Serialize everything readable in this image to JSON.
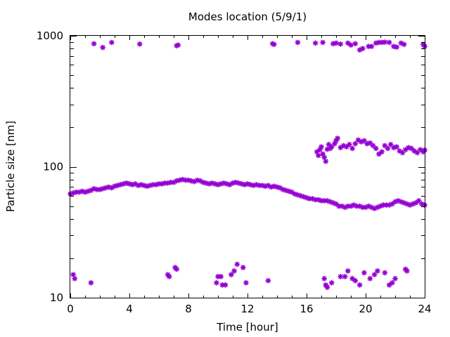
{
  "chart_data": {
    "type": "scatter",
    "title": "Modes location (5/9/1)",
    "xlabel": "Time [hour]",
    "ylabel": "Particle size [nm]",
    "xlim": [
      0,
      24
    ],
    "ylim": [
      10,
      1000
    ],
    "yscale": "log",
    "grid": false,
    "legend": "none",
    "marker_color": "#9400d3",
    "marker": "star",
    "x_ticks": [
      "0",
      "4",
      "8",
      "12",
      "16",
      "20",
      "24"
    ],
    "y_ticks": [
      "10",
      "100",
      "1000"
    ],
    "series": [
      {
        "values": [
          [
            1.6,
            870
          ],
          [
            2.2,
            815
          ],
          [
            2.8,
            890
          ],
          [
            4.7,
            865
          ],
          [
            7.2,
            840
          ],
          [
            7.3,
            850
          ],
          [
            13.7,
            870
          ],
          [
            13.8,
            860
          ],
          [
            15.4,
            890
          ],
          [
            16.6,
            880
          ],
          [
            17.1,
            890
          ],
          [
            17.8,
            870
          ],
          [
            18.0,
            880
          ],
          [
            18.3,
            865
          ],
          [
            18.8,
            880
          ],
          [
            19.0,
            850
          ],
          [
            19.3,
            870
          ],
          [
            19.6,
            780
          ],
          [
            19.8,
            800
          ],
          [
            20.2,
            830
          ],
          [
            20.4,
            830
          ],
          [
            20.7,
            880
          ],
          [
            20.9,
            890
          ],
          [
            21.1,
            890
          ],
          [
            21.3,
            895
          ],
          [
            21.6,
            890
          ],
          [
            21.9,
            830
          ],
          [
            22.1,
            820
          ],
          [
            22.4,
            880
          ],
          [
            22.6,
            860
          ],
          [
            23.9,
            860
          ],
          [
            24.0,
            830
          ]
        ]
      },
      {
        "values": [
          [
            16.7,
            130
          ],
          [
            16.8,
            122
          ],
          [
            16.9,
            135
          ],
          [
            17.0,
            142
          ],
          [
            17.1,
            125
          ],
          [
            17.2,
            118
          ],
          [
            17.3,
            110
          ],
          [
            17.4,
            136
          ],
          [
            17.5,
            148
          ],
          [
            17.6,
            138
          ],
          [
            17.7,
            142
          ],
          [
            17.9,
            150
          ],
          [
            18.0,
            158
          ],
          [
            18.1,
            165
          ],
          [
            18.3,
            140
          ],
          [
            18.5,
            145
          ],
          [
            18.7,
            142
          ],
          [
            18.9,
            148
          ],
          [
            19.1,
            138
          ],
          [
            19.3,
            150
          ],
          [
            19.5,
            160
          ],
          [
            19.7,
            155
          ],
          [
            19.9,
            158
          ],
          [
            20.1,
            150
          ],
          [
            20.3,
            152
          ],
          [
            20.5,
            145
          ],
          [
            20.7,
            138
          ],
          [
            20.9,
            125
          ],
          [
            21.1,
            130
          ],
          [
            21.3,
            145
          ],
          [
            21.5,
            138
          ],
          [
            21.7,
            148
          ],
          [
            21.9,
            140
          ],
          [
            22.1,
            142
          ],
          [
            22.3,
            132
          ],
          [
            22.5,
            128
          ],
          [
            22.7,
            135
          ],
          [
            22.9,
            140
          ],
          [
            23.1,
            138
          ],
          [
            23.3,
            132
          ],
          [
            23.5,
            128
          ],
          [
            23.7,
            135
          ],
          [
            23.9,
            130
          ],
          [
            24.0,
            134
          ]
        ]
      },
      {
        "values": [
          [
            0.0,
            62
          ],
          [
            0.2,
            63
          ],
          [
            0.4,
            64
          ],
          [
            0.6,
            64
          ],
          [
            0.8,
            65
          ],
          [
            1.0,
            64
          ],
          [
            1.2,
            65
          ],
          [
            1.4,
            66
          ],
          [
            1.6,
            68
          ],
          [
            1.8,
            67
          ],
          [
            2.0,
            67
          ],
          [
            2.2,
            68
          ],
          [
            2.4,
            69
          ],
          [
            2.6,
            70
          ],
          [
            2.8,
            69
          ],
          [
            3.0,
            71
          ],
          [
            3.2,
            72
          ],
          [
            3.4,
            73
          ],
          [
            3.6,
            74
          ],
          [
            3.8,
            75
          ],
          [
            4.0,
            74
          ],
          [
            4.2,
            73
          ],
          [
            4.4,
            74
          ],
          [
            4.6,
            72
          ],
          [
            4.8,
            73
          ],
          [
            5.0,
            72
          ],
          [
            5.2,
            71
          ],
          [
            5.4,
            72
          ],
          [
            5.6,
            73
          ],
          [
            5.8,
            73
          ],
          [
            6.0,
            74
          ],
          [
            6.2,
            74
          ],
          [
            6.4,
            75
          ],
          [
            6.6,
            75
          ],
          [
            6.8,
            76
          ],
          [
            7.0,
            76
          ],
          [
            7.2,
            78
          ],
          [
            7.4,
            79
          ],
          [
            7.6,
            80
          ],
          [
            7.8,
            79
          ],
          [
            8.0,
            79
          ],
          [
            8.2,
            78
          ],
          [
            8.4,
            77
          ],
          [
            8.6,
            79
          ],
          [
            8.8,
            78
          ],
          [
            9.0,
            76
          ],
          [
            9.2,
            75
          ],
          [
            9.4,
            74
          ],
          [
            9.6,
            75
          ],
          [
            9.8,
            74
          ],
          [
            10.0,
            73
          ],
          [
            10.2,
            74
          ],
          [
            10.4,
            75
          ],
          [
            10.6,
            74
          ],
          [
            10.8,
            73
          ],
          [
            11.0,
            75
          ],
          [
            11.2,
            76
          ],
          [
            11.4,
            75
          ],
          [
            11.6,
            74
          ],
          [
            11.8,
            73
          ],
          [
            12.0,
            74
          ],
          [
            12.2,
            73
          ],
          [
            12.4,
            72
          ],
          [
            12.6,
            73
          ],
          [
            12.8,
            72
          ],
          [
            13.0,
            72
          ],
          [
            13.2,
            71
          ],
          [
            13.4,
            72
          ],
          [
            13.6,
            70
          ],
          [
            13.8,
            71
          ],
          [
            14.0,
            70
          ],
          [
            14.2,
            69
          ],
          [
            14.4,
            67
          ],
          [
            14.6,
            66
          ],
          [
            14.8,
            65
          ],
          [
            15.0,
            64
          ],
          [
            15.2,
            62
          ],
          [
            15.4,
            61
          ],
          [
            15.6,
            60
          ],
          [
            15.8,
            59
          ],
          [
            16.0,
            58
          ],
          [
            16.2,
            57
          ],
          [
            16.4,
            57
          ],
          [
            16.6,
            56
          ],
          [
            16.8,
            56
          ],
          [
            17.0,
            55
          ],
          [
            17.2,
            55
          ],
          [
            17.4,
            55
          ],
          [
            17.6,
            54
          ],
          [
            17.8,
            53
          ],
          [
            18.0,
            52
          ],
          [
            18.2,
            50
          ],
          [
            18.4,
            50
          ],
          [
            18.6,
            49
          ],
          [
            18.8,
            50
          ],
          [
            19.0,
            50
          ],
          [
            19.2,
            51
          ],
          [
            19.4,
            50
          ],
          [
            19.6,
            50
          ],
          [
            19.8,
            49
          ],
          [
            20.0,
            49
          ],
          [
            20.2,
            50
          ],
          [
            20.4,
            49
          ],
          [
            20.6,
            48
          ],
          [
            20.8,
            49
          ],
          [
            21.0,
            50
          ],
          [
            21.2,
            51
          ],
          [
            21.4,
            51
          ],
          [
            21.6,
            51
          ],
          [
            21.8,
            52
          ],
          [
            22.0,
            54
          ],
          [
            22.2,
            55
          ],
          [
            22.4,
            54
          ],
          [
            22.6,
            53
          ],
          [
            22.8,
            52
          ],
          [
            23.0,
            51
          ],
          [
            23.2,
            52
          ],
          [
            23.4,
            53
          ],
          [
            23.6,
            55
          ],
          [
            23.8,
            52
          ],
          [
            24.0,
            51
          ]
        ]
      },
      {
        "values": [
          [
            0.2,
            15
          ],
          [
            0.3,
            14
          ],
          [
            1.4,
            13
          ],
          [
            6.6,
            15
          ],
          [
            6.7,
            14.5
          ],
          [
            7.1,
            17
          ],
          [
            7.2,
            16.5
          ],
          [
            9.9,
            13
          ],
          [
            10.0,
            14.5
          ],
          [
            10.2,
            14.5
          ],
          [
            10.3,
            12.5
          ],
          [
            10.5,
            12.5
          ],
          [
            10.9,
            15
          ],
          [
            11.1,
            16
          ],
          [
            11.3,
            18
          ],
          [
            11.7,
            17
          ],
          [
            11.9,
            13
          ],
          [
            13.4,
            13.5
          ],
          [
            17.2,
            14
          ],
          [
            17.3,
            12.5
          ],
          [
            17.4,
            12
          ],
          [
            17.7,
            13
          ],
          [
            18.3,
            14.5
          ],
          [
            18.6,
            14.5
          ],
          [
            18.8,
            16
          ],
          [
            19.1,
            14
          ],
          [
            19.3,
            13.5
          ],
          [
            19.6,
            12.5
          ],
          [
            19.9,
            15.5
          ],
          [
            20.3,
            14
          ],
          [
            20.6,
            15
          ],
          [
            20.8,
            16
          ],
          [
            21.3,
            15.5
          ],
          [
            21.6,
            12.5
          ],
          [
            21.8,
            13
          ],
          [
            22.0,
            14
          ],
          [
            22.7,
            16.5
          ],
          [
            22.8,
            16
          ]
        ]
      }
    ]
  }
}
